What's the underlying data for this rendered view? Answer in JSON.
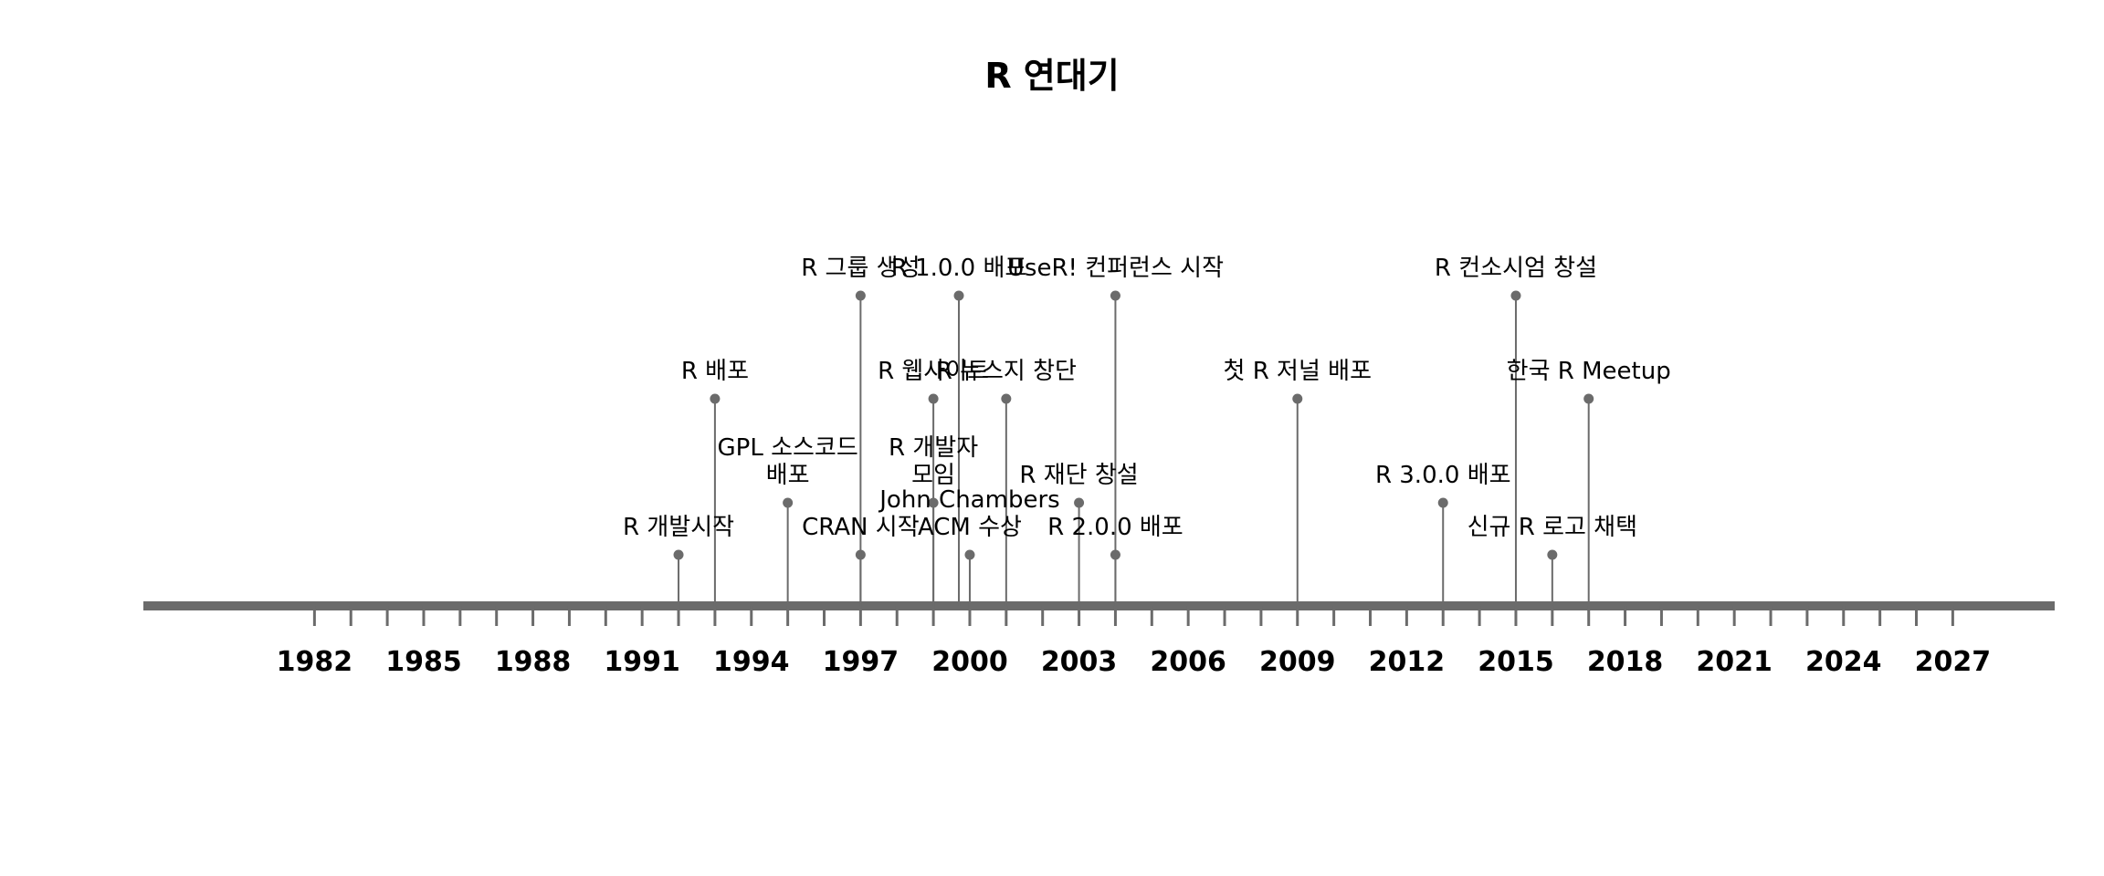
{
  "chart_data": {
    "type": "timeline",
    "title": "R 연대기",
    "xlim": [
      1977.3,
      2029.8
    ],
    "colors": {
      "axis": "#6b6b6b",
      "stem": "#6b6b6b",
      "point": "#6b6b6b",
      "text": "#000000"
    },
    "year_labels": [
      1982,
      1985,
      1988,
      1991,
      1994,
      1997,
      2000,
      2003,
      2006,
      2009,
      2012,
      2015,
      2018,
      2021,
      2024,
      2027
    ],
    "events": [
      {
        "year": 1992.0,
        "level": 1,
        "label": "R 개발시작"
      },
      {
        "year": 1993.0,
        "level": 3,
        "label": "R 배포"
      },
      {
        "year": 1995.0,
        "level": 2,
        "label": "GPL 소스코드 배포",
        "lines": [
          "GPL 소스코드",
          "배포"
        ]
      },
      {
        "year": 1997.0,
        "level": 1,
        "label": "CRAN 시작"
      },
      {
        "year": 1997.0,
        "level": 4,
        "label": "R 그룹 생성"
      },
      {
        "year": 1999.0,
        "level": 3,
        "label": "R 웹사이트"
      },
      {
        "year": 1999.0,
        "level": 2,
        "label": "R 개발자 모임",
        "lines": [
          "R 개발자",
          "모임"
        ]
      },
      {
        "year": 1999.7,
        "level": 4,
        "label": "R 1.0.0 배포"
      },
      {
        "year": 2000.0,
        "level": 1,
        "label": "John Chambers ACM 수상",
        "lines": [
          "John Chambers",
          "ACM 수상"
        ]
      },
      {
        "year": 2001.0,
        "level": 3,
        "label": "R 뉴스지 창단"
      },
      {
        "year": 2003.0,
        "level": 2,
        "label": "R 재단 창설"
      },
      {
        "year": 2004.0,
        "level": 4,
        "label": "UseR! 컨퍼런스 시작"
      },
      {
        "year": 2004.0,
        "level": 1,
        "label": "R 2.0.0 배포"
      },
      {
        "year": 2009.0,
        "level": 3,
        "label": "첫 R 저널 배포"
      },
      {
        "year": 2013.0,
        "level": 2,
        "label": "R 3.0.0 배포"
      },
      {
        "year": 2015.0,
        "level": 4,
        "label": "R 컨소시엄 창설"
      },
      {
        "year": 2016.0,
        "level": 1,
        "label": "신규 R 로고 채택"
      },
      {
        "year": 2017.0,
        "level": 3,
        "label": "한국 R Meetup"
      }
    ]
  }
}
